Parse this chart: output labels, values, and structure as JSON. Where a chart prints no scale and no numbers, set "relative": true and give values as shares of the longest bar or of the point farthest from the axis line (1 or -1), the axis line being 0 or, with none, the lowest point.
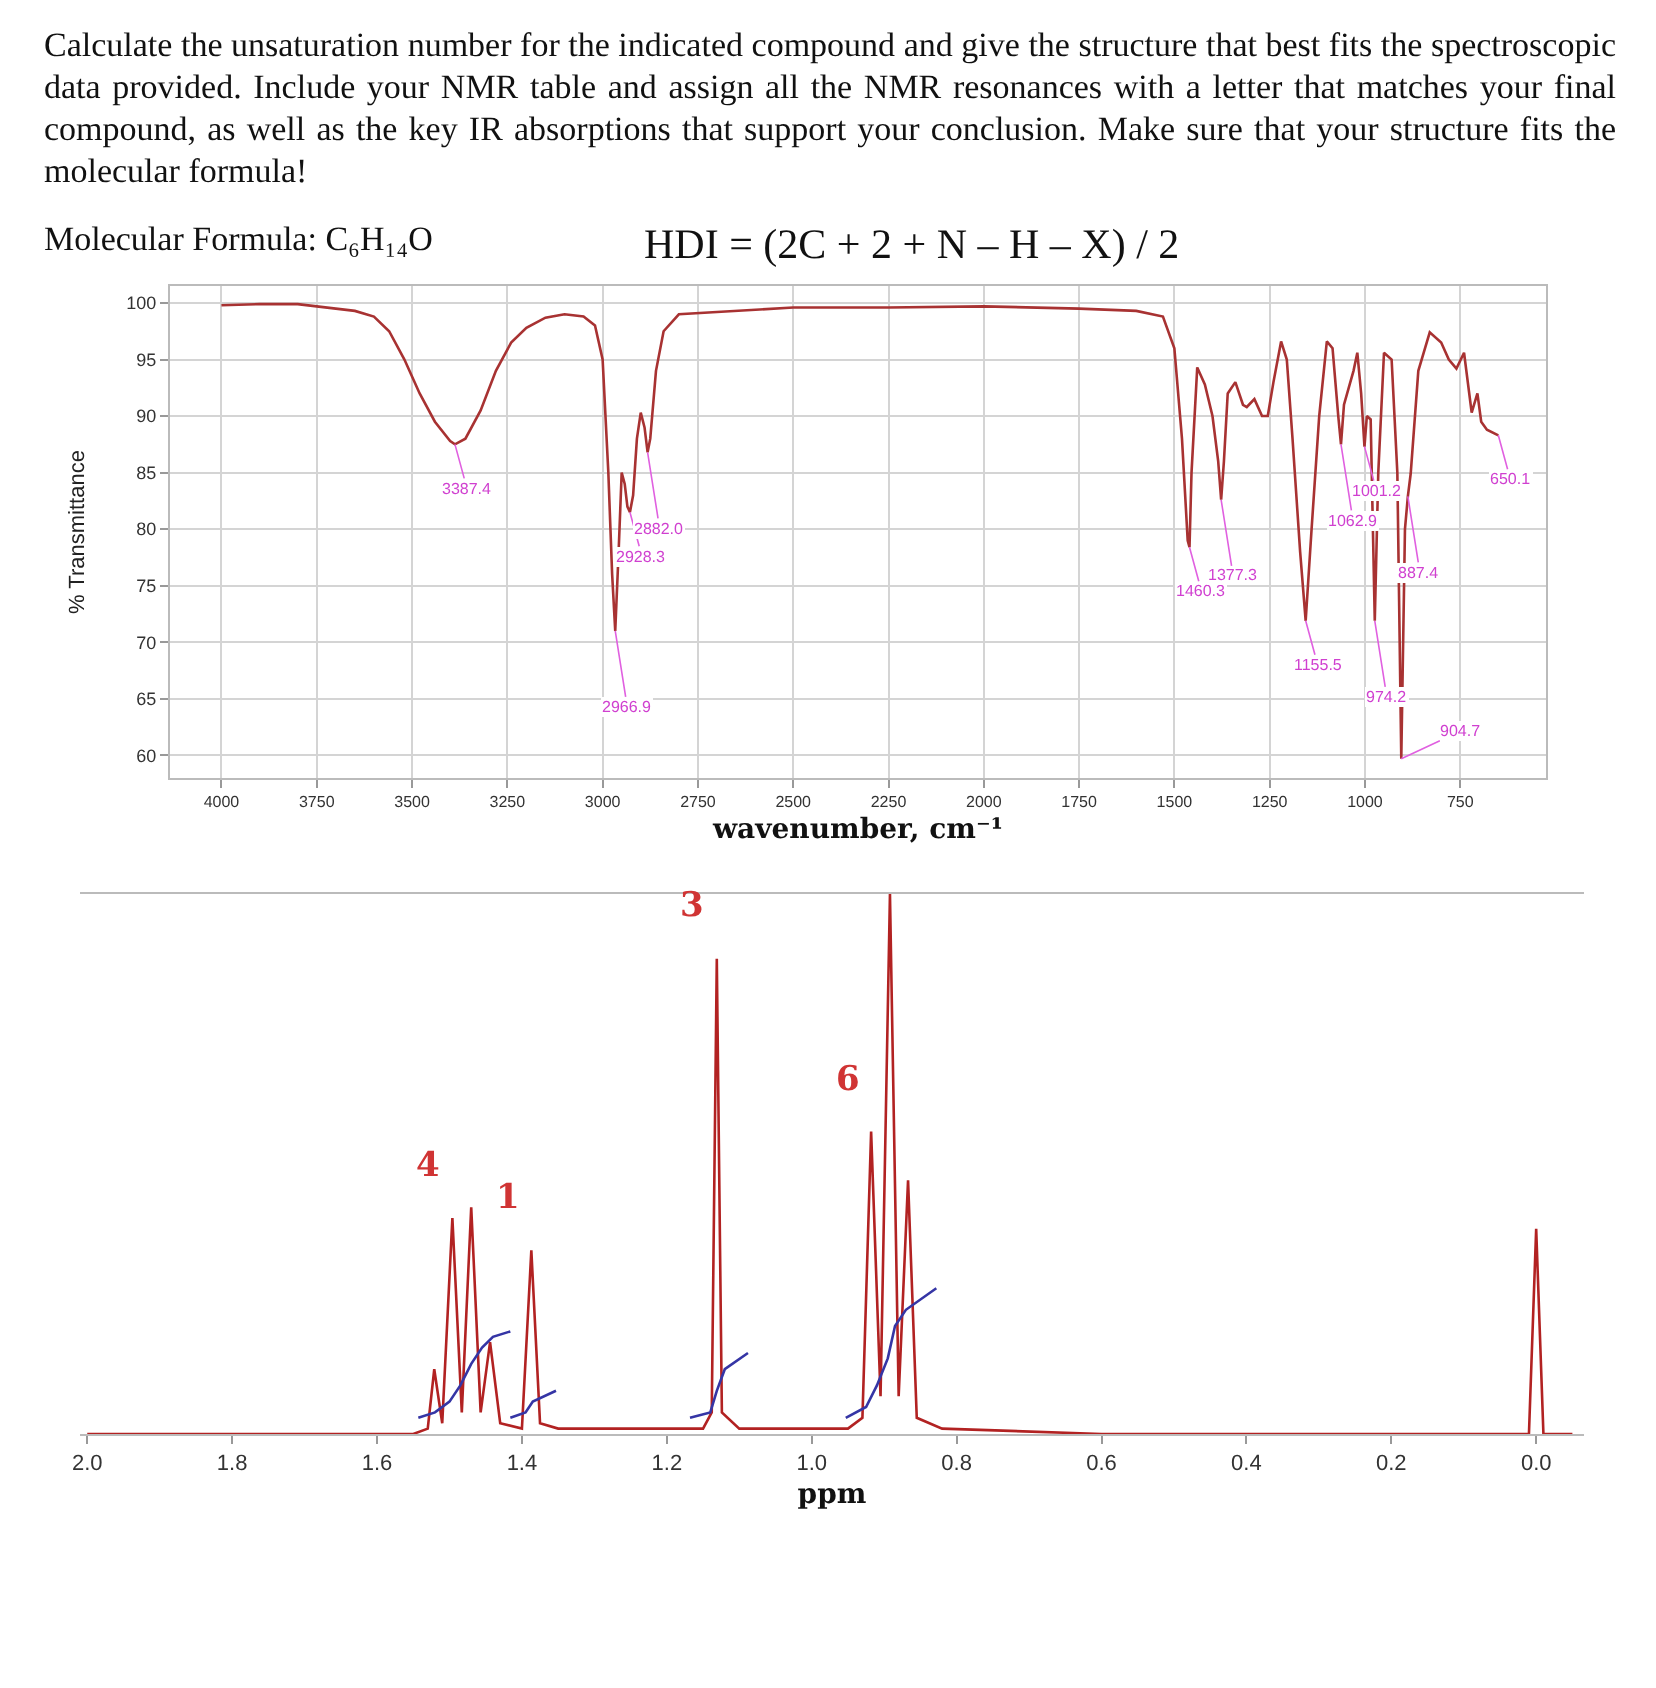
{
  "chart_data": [
    {
      "type": "line",
      "title": "Calculate the unsaturation number for the indicated compound and give the structure that best fits the spectroscopic data provided. Include your NMR table and assign all the NMR resonances with a letter that matches your final compound, as well as the key IR absorptions that support your conclusion. Make sure that your structure fits the molecular formula!",
      "subtitle": "Molecular Formula: C₆H₁₄O",
      "xlabel": "wavenumber, cm⁻¹",
      "ylabel": "% Transmittance",
      "xlim": [
        4135,
        525
      ],
      "ylim": [
        58,
        101.5
      ],
      "xticks": [
        4000,
        3750,
        3500,
        3250,
        3000,
        2750,
        2500,
        2250,
        2000,
        1750,
        1500,
        1250,
        1000,
        750
      ],
      "yticks": [
        60,
        65,
        70,
        75,
        80,
        85,
        90,
        95,
        100
      ],
      "grid": true,
      "annotations": [
        "HDI = (2C + 2 + N – H – X) / 2",
        {
          "text": "3387.4",
          "x": 3387.4,
          "y": 87.5
        },
        {
          "text": "2966.9",
          "x": 2966.9,
          "y": 71
        },
        {
          "text": "2928.3",
          "x": 2928.3,
          "y": 81.5
        },
        {
          "text": "2882.0",
          "x": 2882.0,
          "y": 86.8
        },
        {
          "text": "1460.3",
          "x": 1460.3,
          "y": 78.4
        },
        {
          "text": "1377.3",
          "x": 1377.3,
          "y": 82.6
        },
        {
          "text": "1155.5",
          "x": 1155.5,
          "y": 71.9
        },
        {
          "text": "1062.9",
          "x": 1062.9,
          "y": 87.5
        },
        {
          "text": "1001.2",
          "x": 1001.2,
          "y": 87.3
        },
        {
          "text": "974.2",
          "x": 974.2,
          "y": 71.9
        },
        {
          "text": "904.7",
          "x": 904.7,
          "y": 59.7
        },
        {
          "text": "887.4",
          "x": 887.4,
          "y": 82.9
        },
        {
          "text": "650.1",
          "x": 650.1,
          "y": 88.3
        }
      ],
      "series": [
        {
          "color": "#a83232",
          "x": [
            4000,
            3900,
            3800,
            3700,
            3650,
            3600,
            3560,
            3520,
            3480,
            3440,
            3400,
            3387.4,
            3360,
            3320,
            3280,
            3240,
            3200,
            3150,
            3100,
            3050,
            3020,
            3000,
            2985,
            2975,
            2966.9,
            2958,
            2950,
            2942,
            2935,
            2928.3,
            2920,
            2910,
            2900,
            2890,
            2882.0,
            2875,
            2860,
            2840,
            2800,
            2700,
            2500,
            2250,
            2000,
            1750,
            1600,
            1530,
            1500,
            1480,
            1465,
            1460.3,
            1455,
            1440,
            1420,
            1400,
            1385,
            1377.3,
            1370,
            1360,
            1340,
            1320,
            1310,
            1290,
            1270,
            1255,
            1240,
            1220,
            1205,
            1190,
            1170,
            1155.5,
            1140,
            1120,
            1100,
            1085,
            1070,
            1062.9,
            1055,
            1040,
            1030,
            1020,
            1010,
            1001.2,
            995,
            985,
            974.2,
            965,
            950,
            930,
            915,
            904.7,
            895,
            887.4,
            880,
            860,
            830,
            800,
            780,
            760,
            740,
            720,
            705,
            695,
            680,
            650.1
          ],
          "values": [
            99.8,
            99.9,
            99.9,
            99.5,
            99.3,
            98.8,
            97.5,
            95,
            92,
            89.5,
            87.8,
            87.5,
            88,
            90.5,
            94,
            96.5,
            97.8,
            98.7,
            99,
            98.8,
            98,
            95,
            85,
            76,
            71,
            78,
            85,
            84,
            82,
            81.5,
            83,
            88,
            90.3,
            89,
            86.8,
            88,
            94,
            97.5,
            99,
            99.2,
            99.6,
            99.6,
            99.7,
            99.5,
            99.3,
            98.8,
            96,
            88,
            79,
            78.4,
            85,
            94.3,
            92.8,
            90,
            86,
            82.6,
            86,
            92,
            93,
            91,
            90.8,
            91.5,
            90,
            90,
            93,
            96.6,
            95,
            88,
            78,
            71.9,
            80,
            90,
            96.6,
            96,
            90,
            87.5,
            91,
            92.8,
            94,
            95.6,
            92,
            87.3,
            90,
            89.7,
            71.9,
            85,
            95.6,
            95,
            85,
            59.7,
            80,
            82.9,
            84.9,
            94,
            97.4,
            96.5,
            95,
            94.2,
            95.6,
            90.3,
            92,
            89.5,
            88.8,
            88.3
          ]
        }
      ]
    },
    {
      "type": "line",
      "relative": true,
      "xlabel": "ppm",
      "xlim": [
        2.01,
        -0.066
      ],
      "xticks": [
        {
          "value": 2,
          "label": "2.0"
        },
        {
          "value": 1.8,
          "label": "1.8"
        },
        {
          "value": 1.6,
          "label": "1.6"
        },
        {
          "value": 1.4,
          "label": "1.4"
        },
        {
          "value": 1.2,
          "label": "1.2"
        },
        {
          "value": 1,
          "label": "1.0"
        },
        {
          "value": 0.8,
          "label": "0.8"
        },
        {
          "value": 0.6,
          "label": "0.6"
        },
        {
          "value": 0.4,
          "label": "0.4"
        },
        {
          "value": 0.2,
          "label": "0.2"
        },
        {
          "value": 0,
          "label": "0.0"
        }
      ],
      "annotations": [
        {
          "text": "4",
          "x": 1.496,
          "y": 0.4
        },
        {
          "text": "1",
          "x": 1.387,
          "y": 0.34
        },
        {
          "text": "3",
          "x": 1.131,
          "y": 0.88
        },
        {
          "text": "6",
          "x": 0.918,
          "y": 0.56
        }
      ],
      "series": [
        {
          "color": "#b22222",
          "x": [
            2.0,
            1.55,
            1.53,
            1.521,
            1.51,
            1.496,
            1.483,
            1.47,
            1.457,
            1.444,
            1.43,
            1.4,
            1.387,
            1.375,
            1.35,
            1.15,
            1.138,
            1.131,
            1.124,
            1.1,
            0.95,
            0.93,
            0.918,
            0.905,
            0.892,
            0.88,
            0.867,
            0.855,
            0.82,
            0.6,
            0.01,
            0.0,
            -0.01,
            -0.05
          ],
          "values": [
            0,
            0,
            0.01,
            0.12,
            0.02,
            0.4,
            0.04,
            0.42,
            0.04,
            0.17,
            0.02,
            0.01,
            0.34,
            0.02,
            0.01,
            0.01,
            0.04,
            0.88,
            0.04,
            0.01,
            0.01,
            0.03,
            0.56,
            0.07,
            1,
            0.07,
            0.47,
            0.03,
            0.01,
            0,
            0,
            0.38,
            0,
            0
          ]
        },
        {
          "color": "#3535a5",
          "x": [
            1.543,
            1.52,
            1.5,
            1.485,
            1.47,
            1.455,
            1.44,
            1.416
          ],
          "values": [
            0.03,
            0.04,
            0.06,
            0.09,
            0.13,
            0.16,
            0.18,
            0.19
          ]
        },
        {
          "color": "#3535a5",
          "x": [
            1.416,
            1.395,
            1.385,
            1.353
          ],
          "values": [
            0.03,
            0.04,
            0.06,
            0.08
          ]
        },
        {
          "color": "#3535a5",
          "x": [
            1.168,
            1.14,
            1.131,
            1.12,
            1.088
          ],
          "values": [
            0.03,
            0.04,
            0.08,
            0.12,
            0.15
          ]
        },
        {
          "color": "#3535a5",
          "x": [
            0.953,
            0.925,
            0.91,
            0.895,
            0.885,
            0.87,
            0.828
          ],
          "values": [
            0.03,
            0.05,
            0.09,
            0.14,
            0.2,
            0.23,
            0.27
          ]
        }
      ]
    }
  ]
}
